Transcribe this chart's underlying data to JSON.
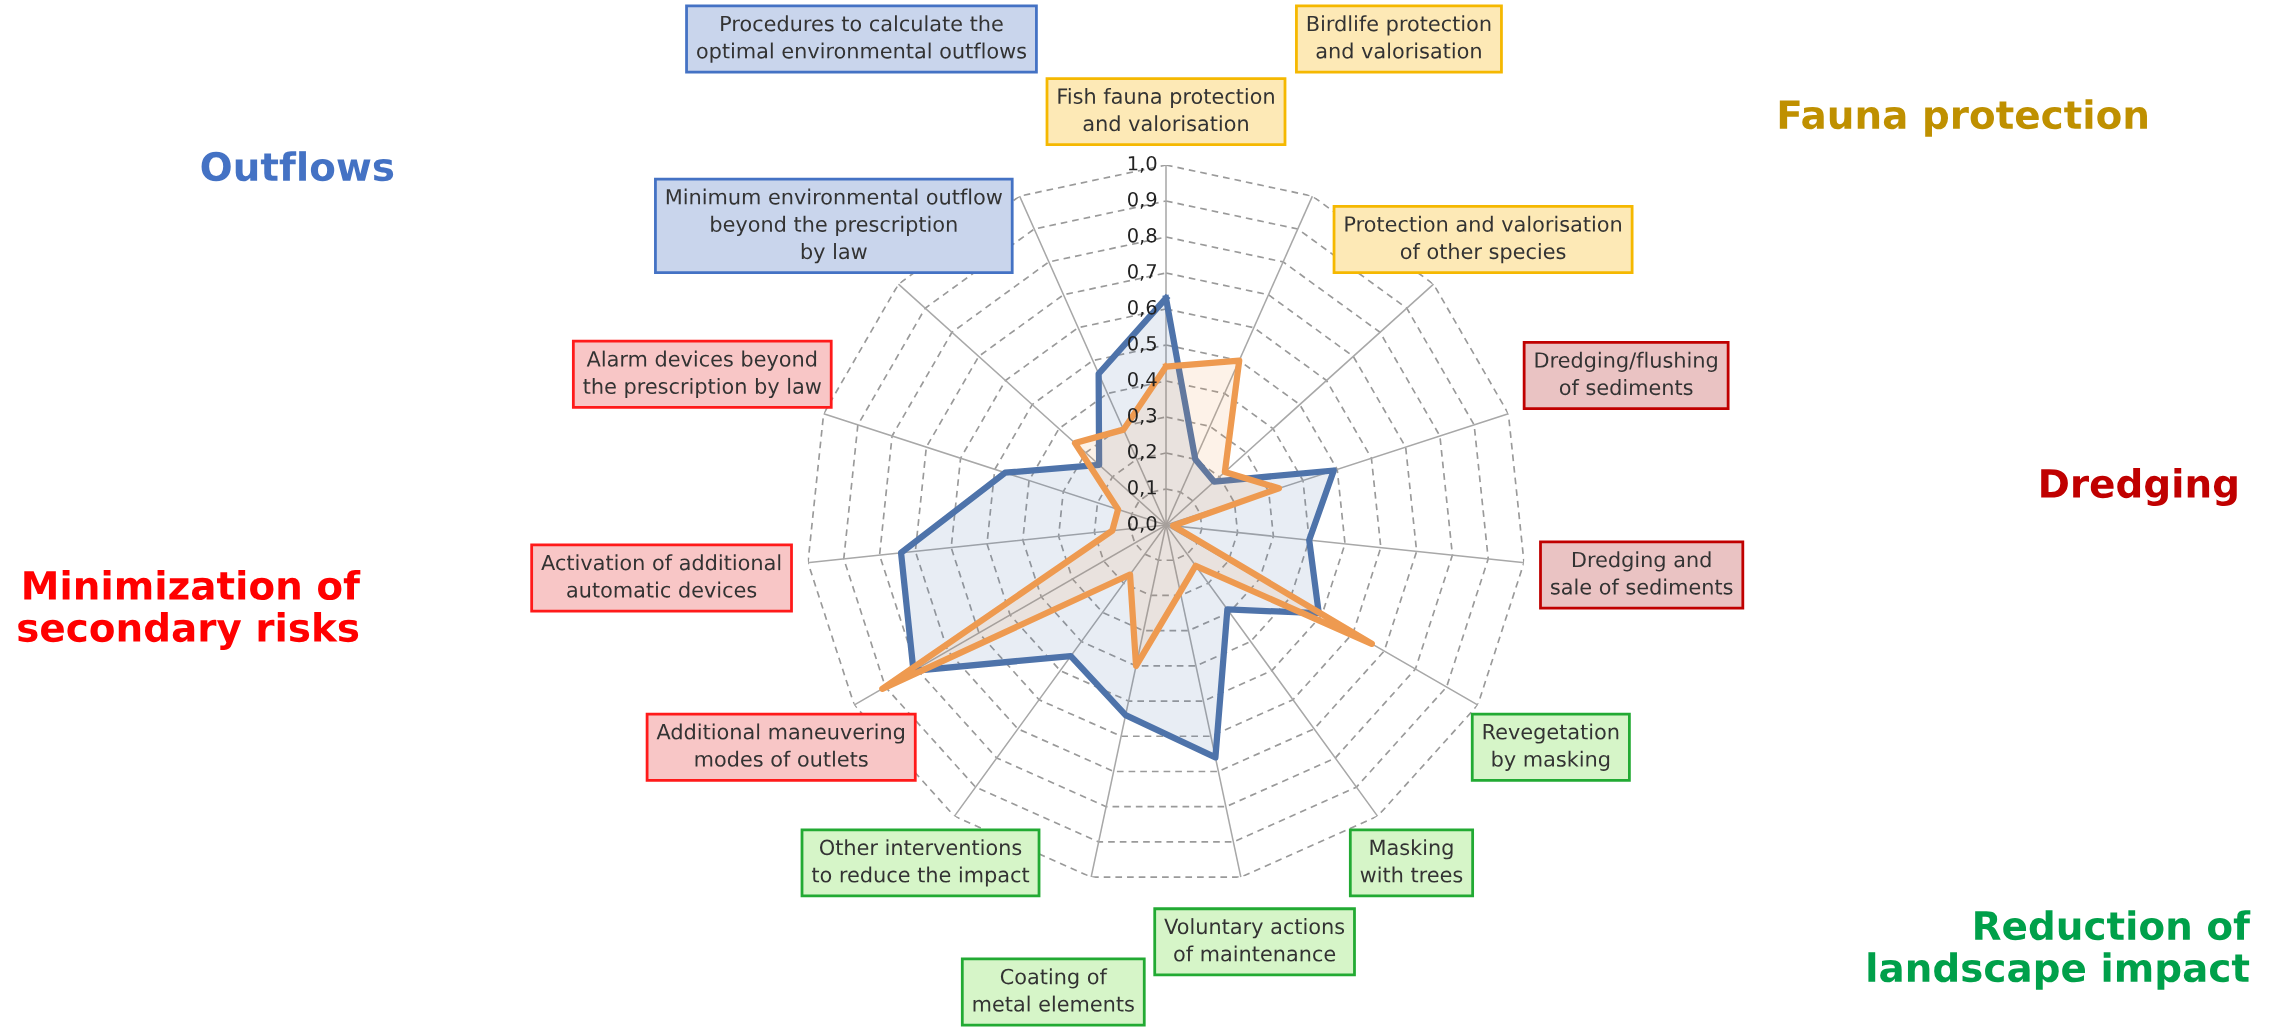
{
  "chart_data": {
    "type": "radar",
    "categories": [
      "Fish fauna protection and valorisation",
      "Birdlife protection and valorisation",
      "Protection and valorisation of other species",
      "Dredging/flushing of sediments",
      "Dredging and sale of sediments",
      "Revegetation by masking",
      "Masking with trees",
      "Voluntary actions of maintenance",
      "Coating of metal elements",
      "Other interventions to reduce the impact",
      "Additional maneuvering modes of outlets",
      "Activation of additional automatic devices",
      "Alarm devices beyond the prescription by law",
      "Minimum environmental outflow beyond the prescription by law",
      "Procedures to calculate the optimal environmental outflows"
    ],
    "series": [
      {
        "color": "#4e73aa",
        "values": [
          0.63,
          0.2,
          0.18,
          0.49,
          0.4,
          0.49,
          0.29,
          0.66,
          0.54,
          0.45,
          0.81,
          0.74,
          0.47,
          0.25,
          0.46
        ]
      },
      {
        "color": "#ee9a50",
        "values": [
          0.44,
          0.5,
          0.22,
          0.33,
          0.02,
          0.66,
          0.14,
          0.19,
          0.4,
          0.17,
          0.91,
          0.15,
          0.14,
          0.34,
          0.29
        ]
      }
    ],
    "ylim": [
      0,
      1
    ],
    "yticks": [
      {
        "value": 0,
        "label": "0,0"
      },
      {
        "value": 0.1,
        "label": "0,1"
      },
      {
        "value": 0.2,
        "label": "0,2"
      },
      {
        "value": 0.3,
        "label": "0,3"
      },
      {
        "value": 0.4,
        "label": "0,4"
      },
      {
        "value": 0.5,
        "label": "0,5"
      },
      {
        "value": 0.6,
        "label": "0,6"
      },
      {
        "value": 0.7,
        "label": "0,7"
      },
      {
        "value": 0.8,
        "label": "0,8"
      },
      {
        "value": 0.9,
        "label": "0,9"
      },
      {
        "value": 1,
        "label": "1,0"
      }
    ],
    "grid": true,
    "line_style": "solid",
    "marker": "none",
    "annotations": [
      "Outflows",
      "Fauna protection",
      "Dredging",
      "Minimization of secondary risks",
      "Reduction of landscape impact"
    ]
  }
}
